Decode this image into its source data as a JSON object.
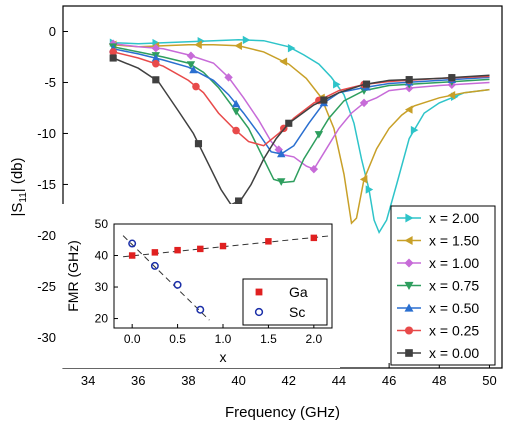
{
  "chart_data": [
    {
      "type": "line",
      "title": "",
      "xlabel": "Frequency (GHz)",
      "ylabel": "|S11| (db)",
      "xlim": [
        33,
        50.5
      ],
      "ylim": [
        -33,
        2.5
      ],
      "xticks": [
        34,
        36,
        38,
        40,
        42,
        44,
        46,
        48,
        50
      ],
      "yticks": [
        0,
        -5,
        -10,
        -15,
        -20,
        -25,
        -30
      ],
      "legend_position": "bottom-right",
      "series": [
        {
          "name": "x = 2.00",
          "color": "#2ec4c9",
          "marker": "triangle-right",
          "points": [
            [
              35,
              -1.1
            ],
            [
              36,
              -1.2
            ],
            [
              37,
              -1.1
            ],
            [
              38,
              -1.0
            ],
            [
              39,
              -0.9
            ],
            [
              40,
              -0.8
            ],
            [
              41,
              -0.9
            ],
            [
              42,
              -1.5
            ],
            [
              42.6,
              -2.3
            ],
            [
              43.2,
              -3.2
            ],
            [
              43.7,
              -4.5
            ],
            [
              44.2,
              -6.2
            ],
            [
              44.6,
              -9
            ],
            [
              44.9,
              -12.5
            ],
            [
              45.2,
              -15.5
            ],
            [
              45.4,
              -18.5
            ],
            [
              45.6,
              -19.7
            ],
            [
              45.9,
              -18.5
            ],
            [
              46.3,
              -15
            ],
            [
              46.8,
              -10.5
            ],
            [
              47.4,
              -8
            ],
            [
              48,
              -7
            ],
            [
              48.5,
              -6.5
            ],
            [
              49,
              -6.0
            ],
            [
              50,
              -5.7
            ]
          ],
          "marker_x": [
            35,
            36.7,
            38.5,
            40.3,
            42.1,
            43.9,
            45.2,
            47.0,
            48.6
          ]
        },
        {
          "name": "x = 1.50",
          "color": "#c8a028",
          "marker": "triangle-left",
          "points": [
            [
              35,
              -1.3
            ],
            [
              36,
              -1.5
            ],
            [
              37,
              -1.4
            ],
            [
              38,
              -1.3
            ],
            [
              39,
              -1.3
            ],
            [
              40,
              -1.4
            ],
            [
              41,
              -2.0
            ],
            [
              42,
              -3.2
            ],
            [
              42.7,
              -4.6
            ],
            [
              43.3,
              -6.5
            ],
            [
              43.8,
              -9.5
            ],
            [
              44.2,
              -14
            ],
            [
              44.5,
              -18.8
            ],
            [
              44.7,
              -18.3
            ],
            [
              45,
              -14.5
            ],
            [
              45.5,
              -11.5
            ],
            [
              46,
              -9.5
            ],
            [
              46.5,
              -8.2
            ],
            [
              47,
              -7.3
            ],
            [
              48,
              -6.5
            ],
            [
              49,
              -6.0
            ],
            [
              50,
              -5.7
            ]
          ],
          "marker_x": [
            35,
            36.7,
            38.4,
            40.0,
            41.8,
            43.3,
            45.0,
            46.8,
            48.5
          ]
        },
        {
          "name": "x = 1.00",
          "color": "#c76bd8",
          "marker": "diamond",
          "points": [
            [
              35,
              -1.2
            ],
            [
              36,
              -1.5
            ],
            [
              37,
              -1.7
            ],
            [
              38,
              -2.3
            ],
            [
              39,
              -3.1
            ],
            [
              39.6,
              -4.5
            ],
            [
              40.2,
              -6.5
            ],
            [
              40.8,
              -8.7
            ],
            [
              41.3,
              -10.8
            ],
            [
              41.8,
              -12.1
            ],
            [
              42.2,
              -12.3
            ],
            [
              42.7,
              -13.2
            ],
            [
              43,
              -13.5
            ],
            [
              43.5,
              -11.5
            ],
            [
              44,
              -9.5
            ],
            [
              44.5,
              -8.0
            ],
            [
              45,
              -7.0
            ],
            [
              45.5,
              -6.5
            ],
            [
              46,
              -5.8
            ],
            [
              47,
              -5.5
            ],
            [
              48,
              -5.3
            ],
            [
              50,
              -5.0
            ]
          ],
          "marker_x": [
            35,
            36.7,
            38.1,
            39.6,
            41.6,
            43.0,
            45.0,
            46.8,
            48.5
          ]
        },
        {
          "name": "x = 0.75",
          "color": "#2e9e5e",
          "marker": "triangle-down",
          "points": [
            [
              35,
              -1.5
            ],
            [
              36,
              -2.0
            ],
            [
              37,
              -2.5
            ],
            [
              38,
              -3.1
            ],
            [
              38.6,
              -4.0
            ],
            [
              39.2,
              -5.5
            ],
            [
              39.8,
              -7.5
            ],
            [
              40.4,
              -9.5
            ],
            [
              41,
              -12.5
            ],
            [
              41.4,
              -14.5
            ],
            [
              41.8,
              -14.8
            ],
            [
              42.2,
              -14.7
            ],
            [
              42.6,
              -12.5
            ],
            [
              43.1,
              -10.5
            ],
            [
              43.6,
              -8.5
            ],
            [
              44.2,
              -6.8
            ],
            [
              45,
              -5.8
            ],
            [
              46,
              -5.3
            ],
            [
              48,
              -5.0
            ],
            [
              50,
              -4.7
            ]
          ],
          "marker_x": [
            35,
            36.7,
            38.1,
            39.9,
            41.7,
            43.2,
            45.0,
            46.8,
            48.5
          ]
        },
        {
          "name": "x = 0.50",
          "color": "#2a6fd0",
          "marker": "triangle-up",
          "points": [
            [
              35,
              -1.7
            ],
            [
              36,
              -2.2
            ],
            [
              37,
              -2.8
            ],
            [
              38,
              -3.5
            ],
            [
              39,
              -4.8
            ],
            [
              39.6,
              -6.2
            ],
            [
              40.2,
              -8.0
            ],
            [
              40.8,
              -10.0
            ],
            [
              41.3,
              -11.8
            ],
            [
              41.7,
              -12.0
            ],
            [
              42.2,
              -11.2
            ],
            [
              42.8,
              -9.0
            ],
            [
              43.4,
              -7.0
            ],
            [
              44,
              -6.0
            ],
            [
              45,
              -5.5
            ],
            [
              46,
              -5.1
            ],
            [
              48,
              -4.8
            ],
            [
              50,
              -4.5
            ]
          ],
          "marker_x": [
            35,
            36.7,
            38.2,
            39.9,
            41.7,
            43.4,
            45.1,
            46.8,
            48.5
          ]
        },
        {
          "name": "x = 0.25",
          "color": "#e84a4a",
          "marker": "circle",
          "points": [
            [
              35,
              -2.0
            ],
            [
              36,
              -2.6
            ],
            [
              37,
              -3.4
            ],
            [
              38,
              -4.8
            ],
            [
              38.6,
              -6.0
            ],
            [
              39.2,
              -8.0
            ],
            [
              39.8,
              -9.5
            ],
            [
              40.4,
              -10.8
            ],
            [
              41,
              -11.2
            ],
            [
              41.6,
              -10.0
            ],
            [
              42.2,
              -8.5
            ],
            [
              43,
              -7.0
            ],
            [
              44,
              -5.8
            ],
            [
              45,
              -5.2
            ],
            [
              46,
              -4.9
            ],
            [
              48,
              -4.6
            ],
            [
              50,
              -4.4
            ]
          ],
          "marker_x": [
            35,
            36.7,
            38.3,
            39.9,
            41.8,
            43.2,
            45.0,
            46.8,
            48.5
          ]
        },
        {
          "name": "x = 0.00",
          "color": "#404040",
          "marker": "square",
          "points": [
            [
              35,
              -2.6
            ],
            [
              36,
              -3.6
            ],
            [
              36.8,
              -4.9
            ],
            [
              37.6,
              -7.8
            ],
            [
              38.2,
              -10.0
            ],
            [
              38.8,
              -13.0
            ],
            [
              39.3,
              -15.5
            ],
            [
              39.7,
              -17.0
            ],
            [
              40.1,
              -16.5
            ],
            [
              40.5,
              -15.0
            ],
            [
              41,
              -12.5
            ],
            [
              41.5,
              -10.5
            ],
            [
              42,
              -9.0
            ],
            [
              43,
              -7.2
            ],
            [
              44,
              -6.0
            ],
            [
              45,
              -5.2
            ],
            [
              46,
              -4.8
            ],
            [
              48,
              -4.6
            ],
            [
              50,
              -4.3
            ]
          ],
          "marker_x": [
            35,
            36.7,
            38.4,
            40.0,
            42.0,
            43.4,
            45.1,
            46.8,
            48.5
          ]
        }
      ]
    },
    {
      "type": "scatter",
      "title": "",
      "xlabel": "x",
      "ylabel": "FMR (GHz)",
      "xlim": [
        -0.2,
        2.2
      ],
      "ylim": [
        17,
        50
      ],
      "xticks": [
        0.0,
        0.5,
        1.0,
        1.5,
        2.0
      ],
      "yticks": [
        20,
        30,
        40,
        50
      ],
      "legend_position": "right",
      "series": [
        {
          "name": "Ga",
          "color": "#e02020",
          "marker": "square-filled",
          "x": [
            0.0,
            0.25,
            0.5,
            0.75,
            1.0,
            1.5,
            2.0
          ],
          "y": [
            40.0,
            41.0,
            41.7,
            42.1,
            43.0,
            44.5,
            45.6
          ],
          "fit": [
            [
              -0.1,
              39.6
            ],
            [
              2.2,
              46.3
            ]
          ]
        },
        {
          "name": "Sc",
          "color": "#1b2fa8",
          "marker": "circle-open",
          "x": [
            0.0,
            0.25,
            0.5,
            0.75
          ],
          "y": [
            43.8,
            36.7,
            30.7,
            22.8
          ],
          "fit": [
            [
              -0.1,
              46.3
            ],
            [
              0.85,
              19.5
            ]
          ]
        }
      ]
    }
  ]
}
